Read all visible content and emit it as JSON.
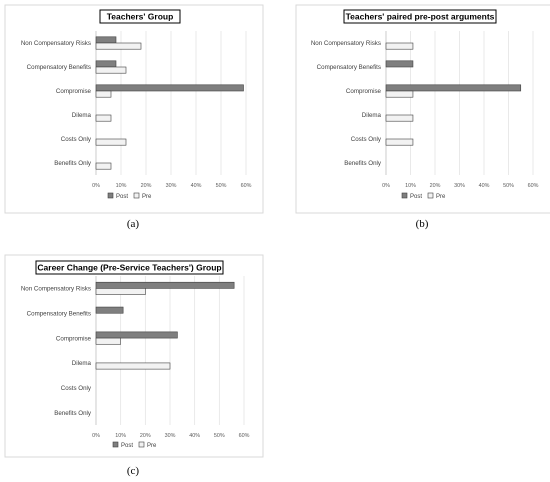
{
  "colors": {
    "post": "#7f7f7f",
    "pre": "#f2f2f2",
    "bar_stroke": "#404040"
  },
  "legend": {
    "post": "Post",
    "pre": "Pre"
  },
  "captions": [
    "(a)",
    "(b)",
    "(c)"
  ],
  "chart_data": [
    {
      "type": "bar",
      "orientation": "horizontal",
      "title": "Teachers' Group",
      "categories": [
        "Non Compensatory Risks",
        "Compensatory Benefits",
        "Compromise",
        "Dilema",
        "Costs Only",
        "Benefits Only"
      ],
      "x_ticks": [
        "0%",
        "10%",
        "20%",
        "30%",
        "40%",
        "50%",
        "60%"
      ],
      "xlim": [
        0,
        60
      ],
      "series": [
        {
          "name": "Post",
          "values": [
            8,
            8,
            59,
            0,
            0,
            0
          ]
        },
        {
          "name": "Pre",
          "values": [
            18,
            12,
            6,
            6,
            12,
            6
          ]
        }
      ],
      "grid": true,
      "legend_position": "bottom"
    },
    {
      "type": "bar",
      "orientation": "horizontal",
      "title": "Teachers' paired pre-post arguments",
      "categories": [
        "Non Compensatory Risks",
        "Compensatory Benefits",
        "Compromise",
        "Dilema",
        "Costs Only",
        "Benefits Only"
      ],
      "x_ticks": [
        "0%",
        "10%",
        "20%",
        "30%",
        "40%",
        "50%",
        "60%"
      ],
      "xlim": [
        0,
        60
      ],
      "series": [
        {
          "name": "Post",
          "values": [
            0,
            11,
            55,
            0,
            0,
            0
          ]
        },
        {
          "name": "Pre",
          "values": [
            11,
            0,
            11,
            11,
            11,
            0
          ]
        }
      ],
      "grid": true,
      "legend_position": "bottom"
    },
    {
      "type": "bar",
      "orientation": "horizontal",
      "title": "Career Change (Pre-Service Teachers') Group",
      "categories": [
        "Non Compensatory Risks",
        "Compensatory Benefits",
        "Compromise",
        "Dilema",
        "Costs Only",
        "Benefits Only"
      ],
      "x_ticks": [
        "0%",
        "10%",
        "20%",
        "30%",
        "40%",
        "50%",
        "60%"
      ],
      "xlim": [
        0,
        60
      ],
      "series": [
        {
          "name": "Post",
          "values": [
            56,
            11,
            33,
            0,
            0,
            0
          ]
        },
        {
          "name": "Pre",
          "values": [
            20,
            0,
            10,
            30,
            0,
            0
          ]
        }
      ],
      "grid": true,
      "legend_position": "bottom"
    }
  ]
}
